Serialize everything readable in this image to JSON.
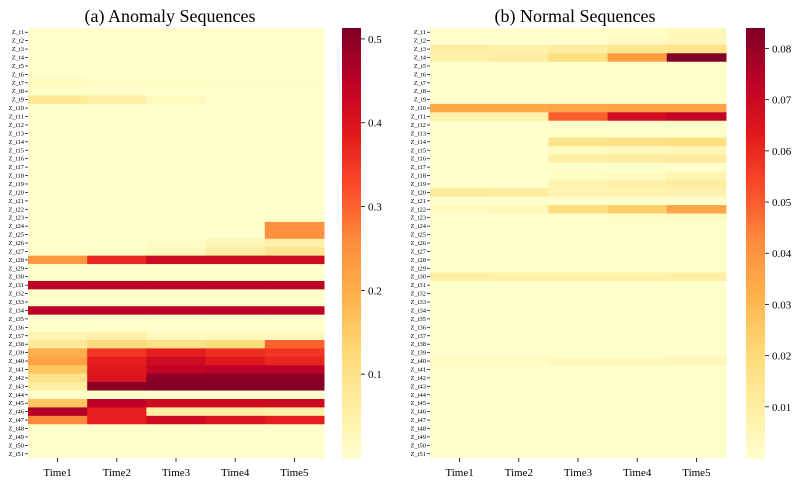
{
  "chart_data": [
    {
      "type": "heatmap",
      "title": "(a) Anomaly Sequences",
      "xlabel": "",
      "ylabel": "",
      "categories": [
        "Time1",
        "Time2",
        "Time3",
        "Time4",
        "Time5"
      ],
      "row_prefix": "Z_t",
      "row_count": 51,
      "colorbar": {
        "min": 0.0,
        "max": 0.513,
        "ticks": [
          0.1,
          0.2,
          0.3,
          0.4,
          0.5
        ],
        "tick_labels": [
          "0.1",
          "0.2",
          "0.3",
          "0.4",
          "0.5"
        ]
      },
      "colormap": "YlOrRd",
      "values": [
        [
          0.0,
          0.0,
          0.0,
          0.0,
          0.0
        ],
        [
          0.0,
          0.0,
          0.0,
          0.0,
          0.0
        ],
        [
          0.0,
          0.0,
          0.0,
          0.0,
          0.0
        ],
        [
          0.0,
          0.0,
          0.0,
          0.0,
          0.0
        ],
        [
          0.0,
          0.0,
          0.0,
          0.0,
          0.0
        ],
        [
          0.0,
          0.0,
          0.0,
          0.0,
          0.0
        ],
        [
          0.02,
          0.015,
          0.01,
          0.008,
          0.005
        ],
        [
          0.005,
          0.005,
          0.0,
          0.0,
          0.0
        ],
        [
          0.08,
          0.06,
          0.02,
          0.0,
          0.0
        ],
        [
          0.0,
          0.0,
          0.0,
          0.0,
          0.0
        ],
        [
          0.0,
          0.0,
          0.0,
          0.0,
          0.0
        ],
        [
          0.0,
          0.0,
          0.0,
          0.0,
          0.0
        ],
        [
          0.0,
          0.0,
          0.0,
          0.0,
          0.0
        ],
        [
          0.0,
          0.0,
          0.0,
          0.0,
          0.0
        ],
        [
          0.0,
          0.0,
          0.0,
          0.0,
          0.0
        ],
        [
          0.0,
          0.0,
          0.0,
          0.0,
          0.0
        ],
        [
          0.0,
          0.0,
          0.0,
          0.0,
          0.0
        ],
        [
          0.0,
          0.0,
          0.0,
          0.0,
          0.0
        ],
        [
          0.0,
          0.0,
          0.0,
          0.0,
          0.0
        ],
        [
          0.0,
          0.0,
          0.0,
          0.0,
          0.0
        ],
        [
          0.0,
          0.0,
          0.0,
          0.0,
          0.0
        ],
        [
          0.0,
          0.0,
          0.0,
          0.0,
          0.0
        ],
        [
          0.0,
          0.0,
          0.0,
          0.0,
          0.0
        ],
        [
          0.0,
          0.0,
          0.0,
          0.0,
          0.25
        ],
        [
          0.0,
          0.0,
          0.0,
          0.0,
          0.25
        ],
        [
          0.0,
          0.0,
          0.01,
          0.03,
          0.05
        ],
        [
          0.005,
          0.01,
          0.02,
          0.06,
          0.09
        ],
        [
          0.24,
          0.37,
          0.42,
          0.42,
          0.42
        ],
        [
          0.0,
          0.0,
          0.0,
          0.0,
          0.0
        ],
        [
          0.0,
          0.0,
          0.0,
          0.0,
          0.0
        ],
        [
          0.45,
          0.45,
          0.45,
          0.45,
          0.45
        ],
        [
          0.0,
          0.0,
          0.0,
          0.0,
          0.0
        ],
        [
          0.0,
          0.0,
          0.0,
          0.0,
          0.0
        ],
        [
          0.45,
          0.45,
          0.45,
          0.45,
          0.45
        ],
        [
          0.0,
          0.0,
          0.0,
          0.0,
          0.0
        ],
        [
          0.0,
          0.0,
          0.0,
          0.0,
          0.0
        ],
        [
          0.04,
          0.05,
          0.02,
          0.02,
          0.02
        ],
        [
          0.08,
          0.12,
          0.1,
          0.12,
          0.3
        ],
        [
          0.2,
          0.35,
          0.38,
          0.36,
          0.35
        ],
        [
          0.22,
          0.38,
          0.42,
          0.39,
          0.37
        ],
        [
          0.16,
          0.39,
          0.44,
          0.45,
          0.45
        ],
        [
          0.1,
          0.4,
          0.5,
          0.5,
          0.5
        ],
        [
          0.06,
          0.5,
          0.51,
          0.51,
          0.51
        ],
        [
          0.0,
          0.0,
          0.0,
          0.0,
          0.0
        ],
        [
          0.16,
          0.45,
          0.42,
          0.42,
          0.42
        ],
        [
          0.46,
          0.38,
          0.06,
          0.06,
          0.05
        ],
        [
          0.26,
          0.38,
          0.42,
          0.4,
          0.38
        ],
        [
          0.0,
          0.0,
          0.0,
          0.0,
          0.0
        ],
        [
          0.0,
          0.0,
          0.0,
          0.0,
          0.0
        ],
        [
          0.0,
          0.0,
          0.0,
          0.0,
          0.0
        ],
        [
          0.0,
          0.0,
          0.0,
          0.0,
          0.0
        ]
      ]
    },
    {
      "type": "heatmap",
      "title": "(b)  Normal Sequences",
      "xlabel": "",
      "ylabel": "",
      "categories": [
        "Time1",
        "Time2",
        "Time3",
        "Time4",
        "Time5"
      ],
      "row_prefix": "Z_t",
      "row_count": 51,
      "colorbar": {
        "min": 0.0,
        "max": 0.084,
        "ticks": [
          0.01,
          0.02,
          0.03,
          0.04,
          0.05,
          0.06,
          0.07,
          0.08
        ],
        "tick_labels": [
          "0.01",
          "0.02",
          "0.03",
          "0.04",
          "0.05",
          "0.06",
          "0.07",
          "0.08"
        ]
      },
      "colormap": "YlOrRd",
      "values": [
        [
          0.0,
          0.0,
          0.0,
          0.002,
          0.004
        ],
        [
          0.0,
          0.0,
          0.0,
          0.003,
          0.005
        ],
        [
          0.01,
          0.008,
          0.01,
          0.014,
          0.016
        ],
        [
          0.008,
          0.01,
          0.018,
          0.038,
          0.084
        ],
        [
          0.0,
          0.0,
          0.0,
          0.0,
          0.0
        ],
        [
          0.0,
          0.0,
          0.0,
          0.0,
          0.0
        ],
        [
          0.0,
          0.0,
          0.0,
          0.0,
          0.0
        ],
        [
          0.0,
          0.0,
          0.0,
          0.0,
          0.0
        ],
        [
          0.0,
          0.0,
          0.0,
          0.0,
          0.0
        ],
        [
          0.034,
          0.034,
          0.035,
          0.036,
          0.036
        ],
        [
          0.008,
          0.008,
          0.05,
          0.068,
          0.072
        ],
        [
          0.0,
          0.0,
          0.0,
          0.0,
          0.0
        ],
        [
          0.0,
          0.0,
          0.0,
          0.0,
          0.0
        ],
        [
          0.0,
          0.0,
          0.016,
          0.017,
          0.018
        ],
        [
          0.0,
          0.0,
          0.003,
          0.004,
          0.005
        ],
        [
          0.0,
          0.0,
          0.009,
          0.01,
          0.011
        ],
        [
          0.0,
          0.0,
          0.0,
          0.0,
          0.0
        ],
        [
          0.0,
          0.0,
          0.002,
          0.003,
          0.006
        ],
        [
          0.0,
          0.0,
          0.006,
          0.008,
          0.01
        ],
        [
          0.012,
          0.011,
          0.007,
          0.007,
          0.007
        ],
        [
          0.0,
          0.0,
          0.0,
          0.0,
          0.0
        ],
        [
          0.003,
          0.004,
          0.019,
          0.024,
          0.035
        ],
        [
          0.0,
          0.0,
          0.001,
          0.002,
          0.003
        ],
        [
          0.0,
          0.0,
          0.0,
          0.0,
          0.0
        ],
        [
          0.0,
          0.0,
          0.0,
          0.0,
          0.0
        ],
        [
          0.0,
          0.0,
          0.0,
          0.0,
          0.0
        ],
        [
          0.0,
          0.0,
          0.0,
          0.0,
          0.0
        ],
        [
          0.0,
          0.0,
          0.0,
          0.0,
          0.0
        ],
        [
          0.0,
          0.0,
          0.0,
          0.0,
          0.0
        ],
        [
          0.009,
          0.008,
          0.008,
          0.008,
          0.009
        ],
        [
          0.0,
          0.0,
          0.0,
          0.0,
          0.0
        ],
        [
          0.0,
          0.0,
          0.0,
          0.0,
          0.0
        ],
        [
          0.0,
          0.0,
          0.0,
          0.0,
          0.0
        ],
        [
          0.0,
          0.0,
          0.0,
          0.0,
          0.0
        ],
        [
          0.0,
          0.0,
          0.0,
          0.0,
          0.0
        ],
        [
          0.0,
          0.0,
          0.0,
          0.0,
          0.0
        ],
        [
          0.0,
          0.0,
          0.0,
          0.0,
          0.0
        ],
        [
          0.0,
          0.0,
          0.0,
          0.0,
          0.0
        ],
        [
          0.0,
          0.0,
          0.0,
          0.0,
          0.0
        ],
        [
          0.002,
          0.002,
          0.004,
          0.004,
          0.005
        ],
        [
          0.0,
          0.0,
          0.0,
          0.0,
          0.0
        ],
        [
          0.0,
          0.0,
          0.0,
          0.0,
          0.0
        ],
        [
          0.0,
          0.0,
          0.0,
          0.0,
          0.0
        ],
        [
          0.0,
          0.0,
          0.0,
          0.0,
          0.0
        ],
        [
          0.0,
          0.0,
          0.0,
          0.0,
          0.0
        ],
        [
          0.0,
          0.0,
          0.0,
          0.0,
          0.0
        ],
        [
          0.0,
          0.0,
          0.0,
          0.0,
          0.0
        ],
        [
          0.0,
          0.0,
          0.0,
          0.0,
          0.0
        ],
        [
          0.0,
          0.0,
          0.0,
          0.0,
          0.0
        ],
        [
          0.0,
          0.0,
          0.0,
          0.0,
          0.0
        ],
        [
          0.0,
          0.0,
          0.0,
          0.0,
          0.0
        ]
      ]
    }
  ]
}
